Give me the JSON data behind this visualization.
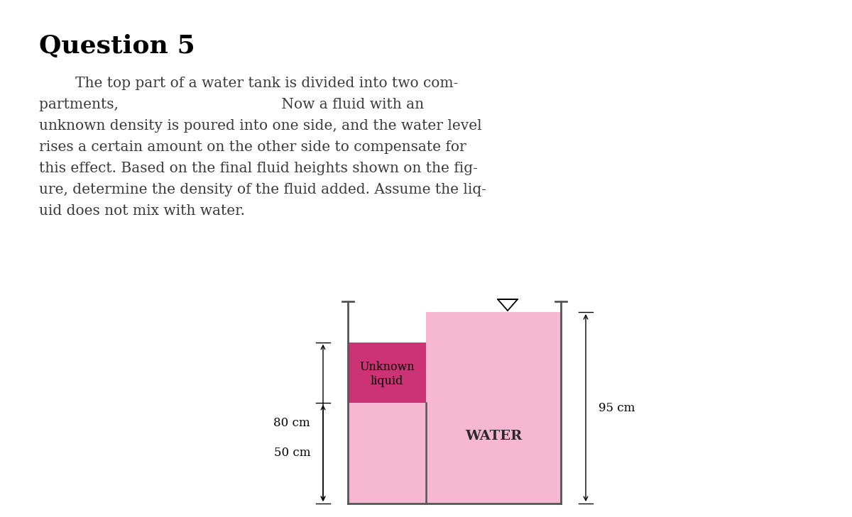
{
  "title": "Question 5",
  "para_line1": "        The top part of a water tank is divided into two com-",
  "para_line2": "partments,                                    Now a fluid with an",
  "para_line3": "unknown density is poured into one side, and the water level",
  "para_line4": "rises a certain amount on the other side to compensate for",
  "para_line5": "this effect. Based on the final fluid heights shown on the fig-",
  "para_line6": "ure, determine the density of the fluid added. Assume the liq-",
  "para_line7": "uid does not mix with water.",
  "bg_color": "#ffffff",
  "unknown_liquid_color": "#cc3377",
  "water_color": "#f5b8d0",
  "water_label": "WATER",
  "unknown_label_line1": "Unknown",
  "unknown_label_line2": "liquid",
  "height_80_label": "80 cm",
  "height_50_label": "50 cm",
  "height_95_label": "95 cm",
  "text_color": "#3a3a3a"
}
